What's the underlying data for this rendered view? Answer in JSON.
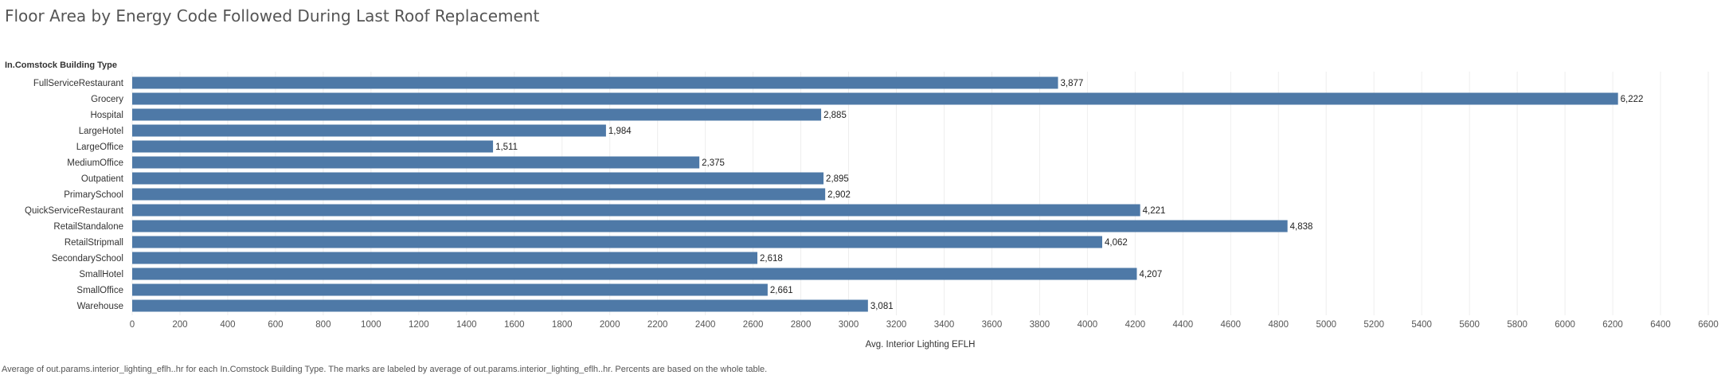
{
  "title": "Floor Area by Energy Code Followed During Last Roof Replacement",
  "footnote": "Average of out.params.interior_lighting_eflh..hr for each In.Comstock Building Type.  The marks are labeled by average of out.params.interior_lighting_eflh..hr. Percents are based on the whole table.",
  "colors": {
    "bar": "#4e79a7",
    "grid": "#eeeeee"
  },
  "chart_data": {
    "type": "bar",
    "orientation": "horizontal",
    "ylabel": "In.Comstock Building Type",
    "xlabel": "Avg. Interior Lighting EFLH",
    "xlim": [
      0,
      6600
    ],
    "xticks": [
      0,
      200,
      400,
      600,
      800,
      1000,
      1200,
      1400,
      1600,
      1800,
      2000,
      2200,
      2400,
      2600,
      2800,
      3000,
      3200,
      3400,
      3600,
      3800,
      4000,
      4200,
      4400,
      4600,
      4800,
      5000,
      5200,
      5400,
      5600,
      5800,
      6000,
      6200,
      6400,
      6600
    ],
    "grid": true,
    "categories": [
      "FullServiceRestaurant",
      "Grocery",
      "Hospital",
      "LargeHotel",
      "LargeOffice",
      "MediumOffice",
      "Outpatient",
      "PrimarySchool",
      "QuickServiceRestaurant",
      "RetailStandalone",
      "RetailStripmall",
      "SecondarySchool",
      "SmallHotel",
      "SmallOffice",
      "Warehouse"
    ],
    "values": [
      3877,
      6222,
      2885,
      1984,
      1511,
      2375,
      2895,
      2902,
      4221,
      4838,
      4062,
      2618,
      4207,
      2661,
      3081
    ],
    "labels": [
      "3,877",
      "6,222",
      "2,885",
      "1,984",
      "1,511",
      "2,375",
      "2,895",
      "2,902",
      "4,221",
      "4,838",
      "4,062",
      "2,618",
      "4,207",
      "2,661",
      "3,081"
    ]
  }
}
